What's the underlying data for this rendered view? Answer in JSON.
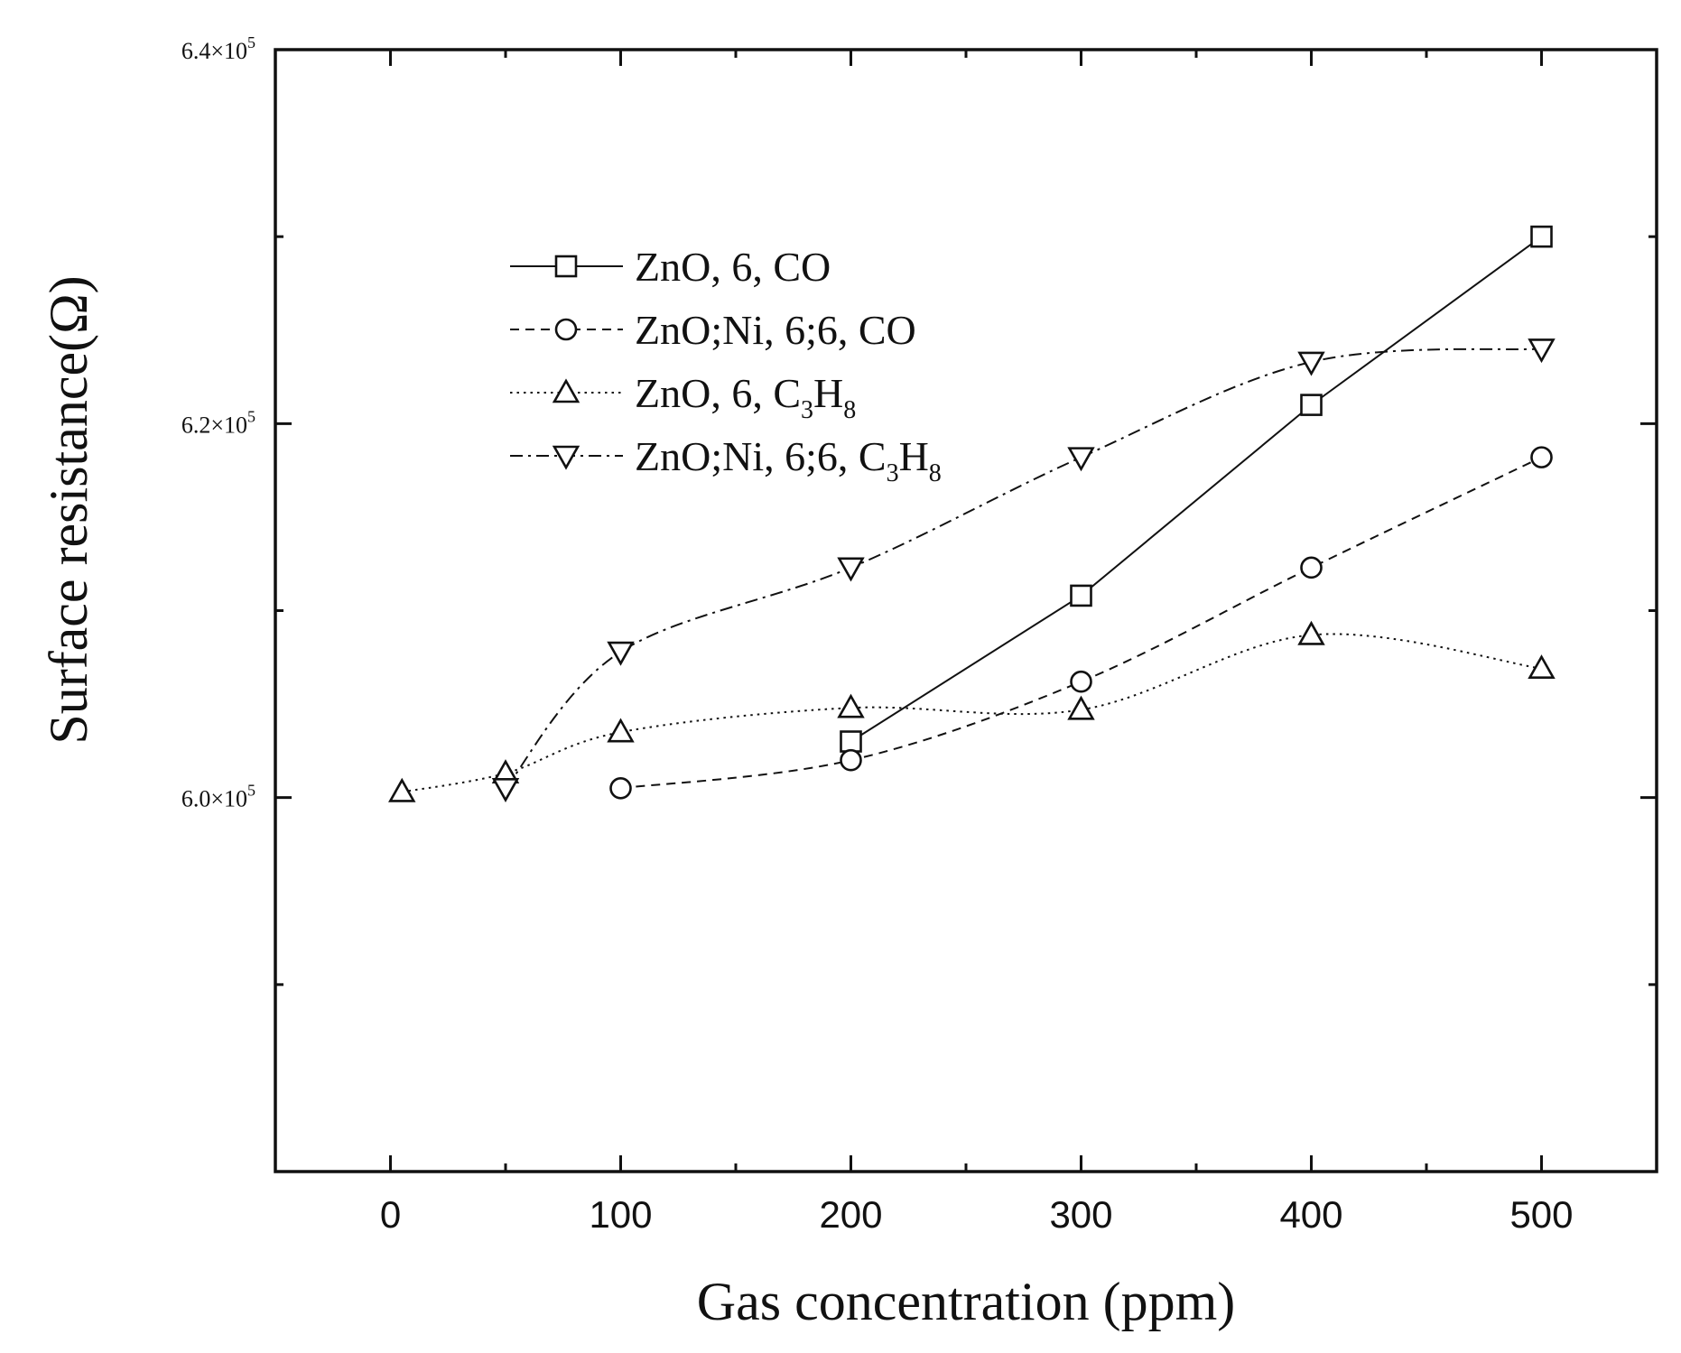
{
  "chart_data": {
    "type": "line",
    "xlabel": "Gas concentration (ppm)",
    "ylabel": "Surface resistance(Ω)",
    "xlim": [
      -50,
      550
    ],
    "ylim": [
      580000,
      640000
    ],
    "xticks": [
      0,
      100,
      200,
      300,
      400,
      500
    ],
    "xtick_labels": [
      "0",
      "100",
      "200",
      "300",
      "400",
      "500"
    ],
    "yticks": [
      600000,
      620000,
      640000
    ],
    "ytick_labels": [
      {
        "mant": "6.0×10",
        "exp": "5"
      },
      {
        "mant": "6.2×10",
        "exp": "5"
      },
      {
        "mant": "6.4×10",
        "exp": "5"
      }
    ],
    "grid": false,
    "legend_position": "top-left",
    "series": [
      {
        "name": "ZnO, 6, CO",
        "legend": {
          "main": "ZnO, 6, CO"
        },
        "marker": "square",
        "line": "solid",
        "x": [
          200,
          300,
          400,
          500
        ],
        "y": [
          603000,
          610800,
          621000,
          630000
        ]
      },
      {
        "name": "ZnO;Ni, 6;6, CO",
        "legend": {
          "main": "ZnO;Ni, 6;6, CO"
        },
        "marker": "circle",
        "line": "dashed",
        "x": [
          100,
          200,
          300,
          400,
          500
        ],
        "y": [
          600500,
          602000,
          606200,
          612300,
          618200
        ]
      },
      {
        "name": "ZnO, 6, C3H8",
        "legend": {
          "main": "ZnO, 6, C",
          "sub1": "3",
          "mid": "H",
          "sub2": "8"
        },
        "marker": "triangle-up",
        "line": "dotted",
        "x": [
          5,
          50,
          100,
          200,
          300,
          400,
          500
        ],
        "y": [
          600300,
          601300,
          603500,
          604800,
          604700,
          608700,
          606900
        ]
      },
      {
        "name": "ZnO;Ni, 6;6, C3H8",
        "legend": {
          "main": "ZnO;Ni, 6;6, C",
          "sub1": "3",
          "mid": "H",
          "sub2": "8"
        },
        "marker": "triangle-down",
        "line": "dashdot",
        "x": [
          50,
          100,
          200,
          300,
          400,
          500
        ],
        "y": [
          600500,
          607800,
          612300,
          618200,
          623300,
          624000
        ]
      }
    ]
  }
}
